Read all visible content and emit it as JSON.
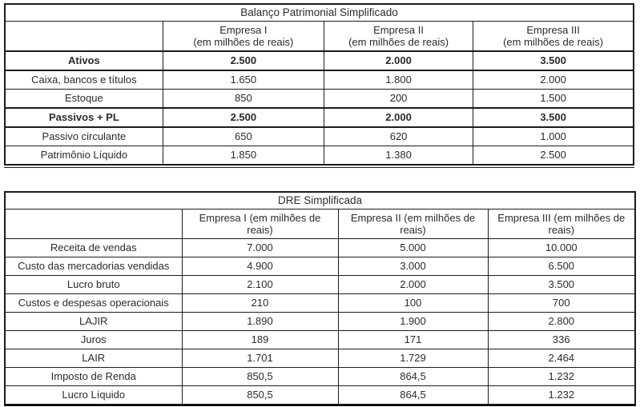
{
  "page": {
    "background": "#ffffff",
    "text_color": "#2b2b2b",
    "border_color": "#1c1c1c"
  },
  "balance_table": {
    "title": "Balanço Patrimonial Simplificado",
    "unit_note": "(em milhões de reais)",
    "col_headers": [
      {
        "name": "Empresa I",
        "unit": "(em milhões de reais)"
      },
      {
        "name": "Empresa II",
        "unit": "(em milhões de reais)"
      },
      {
        "name": "Empresa III",
        "unit": "(em milhões de reais)"
      }
    ],
    "rows": [
      {
        "label": "Ativos",
        "values": [
          "2.500",
          "2.000",
          "3.500"
        ],
        "bold": true
      },
      {
        "label": "Caixa, bancos e títulos",
        "values": [
          "1.650",
          "1.800",
          "2.000"
        ],
        "bold": false
      },
      {
        "label": "Estoque",
        "values": [
          "850",
          "200",
          "1.500"
        ],
        "bold": false
      },
      {
        "label": "Passivos + PL",
        "values": [
          "2.500",
          "2.000",
          "3.500"
        ],
        "bold": true
      },
      {
        "label": "Passivo circulante",
        "values": [
          "650",
          "620",
          "1.000"
        ],
        "bold": false
      },
      {
        "label": "Patrimônio Líquido",
        "values": [
          "1.850",
          "1.380",
          "2.500"
        ],
        "bold": false
      }
    ]
  },
  "dre_table": {
    "title": "DRE Simplificada",
    "col_headers": [
      "Empresa I (em milhões de reais)",
      "Empresa II (em milhões de reais)",
      "Empresa III (em milhões de reais)"
    ],
    "rows": [
      {
        "label": "Receita de vendas",
        "values": [
          "7.000",
          "5.000",
          "10.000"
        ],
        "bold": false
      },
      {
        "label": "Custo das mercadorias vendidas",
        "values": [
          "4.900",
          "3.000",
          "6.500"
        ],
        "bold": false
      },
      {
        "label": "Lucro bruto",
        "values": [
          "2.100",
          "2.000",
          "3.500"
        ],
        "bold": false
      },
      {
        "label": "Custos e despesas operacionais",
        "values": [
          "210",
          "100",
          "700"
        ],
        "bold": false
      },
      {
        "label": "LAJIR",
        "values": [
          "1.890",
          "1.900",
          "2.800"
        ],
        "bold": false
      },
      {
        "label": "Juros",
        "values": [
          "189",
          "171",
          "336"
        ],
        "bold": false
      },
      {
        "label": "LAIR",
        "values": [
          "1.701",
          "1.729",
          "2.464"
        ],
        "bold": false
      },
      {
        "label": "Imposto de Renda",
        "values": [
          "850,5",
          "864,5",
          "1.232"
        ],
        "bold": false
      },
      {
        "label": "Lucro Líquido",
        "values": [
          "850,5",
          "864,5",
          "1.232"
        ],
        "bold": false
      }
    ]
  }
}
